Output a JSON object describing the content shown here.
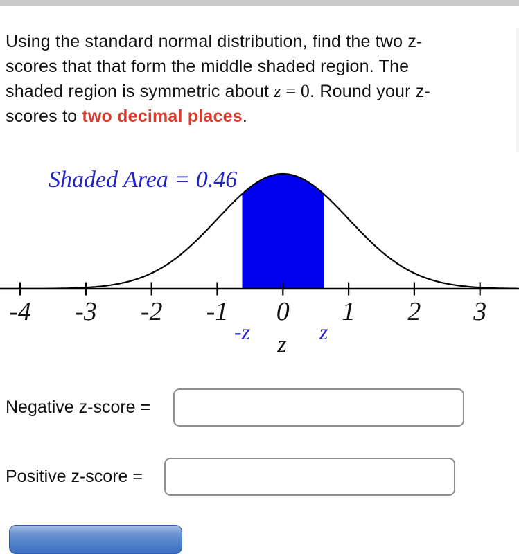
{
  "page": {
    "top_bar_color": "#c9c9c9",
    "background": "#ffffff"
  },
  "question": {
    "emphasis_color": "#d93b2c",
    "lines": [
      [
        {
          "t": "Using the standard normal distribution, find the two z-"
        }
      ],
      [
        {
          "t": "scores that that form the middle shaded region. The"
        }
      ],
      [
        {
          "t": "shaded region is symmetric about "
        },
        {
          "t": "z",
          "style": "math-var"
        },
        {
          "t": " = 0",
          "style": "math"
        },
        {
          "t": ". Round your z-"
        }
      ],
      [
        {
          "t": "scores to "
        },
        {
          "t": "two decimal places",
          "style": "em"
        },
        {
          "t": "."
        }
      ]
    ]
  },
  "chart_data": {
    "type": "area",
    "distribution": "standard normal",
    "title": "Shaded Area = 0.46",
    "shaded_area": 0.46,
    "shade_from": -0.62,
    "shade_to": 0.62,
    "x_ticks": [
      -4,
      -3,
      -2,
      -1,
      0,
      1,
      2,
      3
    ],
    "x_range": [
      -4.31,
      3.59
    ],
    "xlabel": "z",
    "ylabel": "",
    "grid": false,
    "legend": "none",
    "labels": {
      "left_boundary": "-z",
      "right_boundary": "z",
      "axis_variable": "z"
    },
    "colors": {
      "shade_fill": "#0000ee",
      "curve": "#000000",
      "annotation": "#2323c2"
    }
  },
  "answers": {
    "negative": {
      "label": "Negative z-score =",
      "value": "",
      "placeholder": ""
    },
    "positive": {
      "label": "Positive z-score =",
      "value": "",
      "placeholder": ""
    }
  },
  "submit_button": {
    "label": "",
    "color": "#3a6fc4"
  }
}
